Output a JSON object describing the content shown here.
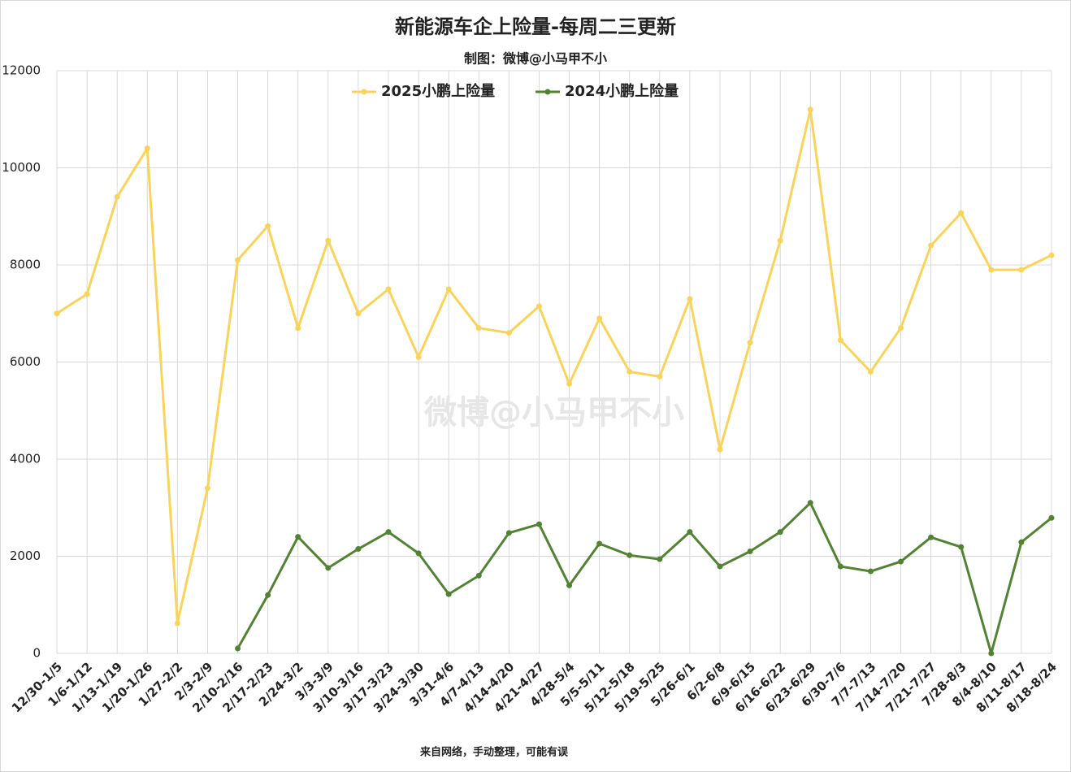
{
  "chart_data": {
    "type": "line",
    "title": "新能源车企上险量-每周二三更新",
    "subtitle": "制图：微博@小马甲不小",
    "watermark": "微博@小马甲不小",
    "footnote": "来自网络，手动整理，可能有误",
    "categories": [
      "12/30-1/5",
      "1/6-1/12",
      "1/13-1/19",
      "1/20-1/26",
      "1/27-2/2",
      "2/3-2/9",
      "2/10-2/16",
      "2/17-2/23",
      "2/24-3/2",
      "3/3-3/9",
      "3/10-3/16",
      "3/17-3/23",
      "3/24-3/30",
      "3/31-4/6",
      "4/7-4/13",
      "4/14-4/20",
      "4/21-4/27",
      "4/28-5/4",
      "5/5-5/11",
      "5/12-5/18",
      "5/19-5/25",
      "5/26-6/1",
      "6/2-6/8",
      "6/9-6/15",
      "6/16-6/22",
      "6/23-6/29",
      "6/30-7/6",
      "7/7-7/13",
      "7/14-7/20",
      "7/21-7/27",
      "7/28-8/3",
      "8/4-8/10",
      "8/11-8/17",
      "8/18-8/24"
    ],
    "series": [
      {
        "name": "2025小鹏上险量",
        "color": "#f9d45c",
        "values": [
          7000,
          7400,
          9400,
          10400,
          620,
          3400,
          8100,
          8800,
          6700,
          8500,
          7000,
          7500,
          6100,
          7500,
          6700,
          6600,
          7150,
          5550,
          6900,
          5800,
          5700,
          7300,
          4200,
          6400,
          8500,
          11200,
          6450,
          5800,
          6700,
          8400,
          9070,
          7900,
          7900,
          8200
        ]
      },
      {
        "name": "2024小鹏上险量",
        "color": "#548235",
        "values": [
          null,
          null,
          null,
          null,
          null,
          null,
          100,
          1200,
          2400,
          1760,
          2150,
          2500,
          2060,
          1220,
          1600,
          2480,
          2660,
          1400,
          2260,
          2020,
          1940,
          2500,
          1790,
          2100,
          2500,
          3100,
          1790,
          1690,
          1890,
          2390,
          2190,
          0,
          2290,
          2790
        ]
      }
    ],
    "ylim": [
      0,
      12000
    ],
    "yticks": [
      0,
      2000,
      4000,
      6000,
      8000,
      10000,
      12000
    ],
    "grid": true,
    "legend": "top"
  }
}
